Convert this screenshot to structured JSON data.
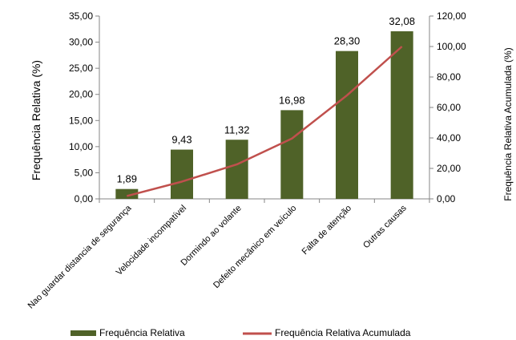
{
  "chart_data": {
    "type": "bar",
    "categories": [
      "Nao guardar distancia de segurança",
      "Velocidade incompatível",
      "Dormindo ao volante",
      "Defeito mecânico em veículo",
      "Falta de atenção",
      "Outras causas"
    ],
    "series": [
      {
        "name": "Frequência Relativa",
        "kind": "bar",
        "axis": "left",
        "values": [
          1.89,
          9.43,
          11.32,
          16.98,
          28.3,
          32.08
        ],
        "labels": [
          "1,89",
          "9,43",
          "11,32",
          "16,98",
          "28,30",
          "32,08"
        ],
        "color": "#4f6228"
      },
      {
        "name": "Frequência Relativa Acumulada",
        "kind": "line",
        "axis": "right",
        "values": [
          1.89,
          11.32,
          22.64,
          39.62,
          67.92,
          100.0
        ],
        "color": "#c0504d"
      }
    ],
    "ylabel": "Frequência Relativa (%)",
    "y2label": "Frequência Relativa Acumulada (%)",
    "ylim": [
      0,
      35
    ],
    "y2lim": [
      0,
      120
    ],
    "yticks": [
      "0,00",
      "5,00",
      "10,00",
      "15,00",
      "20,00",
      "25,00",
      "30,00",
      "35,00"
    ],
    "y2ticks": [
      "0,00",
      "20,00",
      "40,00",
      "60,00",
      "80,00",
      "100,00",
      "120,00"
    ],
    "grid": false,
    "legend_position": "bottom"
  }
}
